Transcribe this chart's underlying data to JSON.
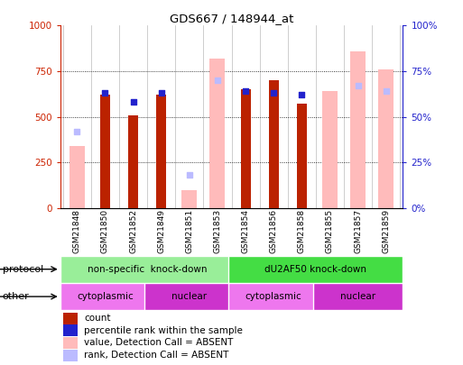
{
  "title": "GDS667 / 148944_at",
  "samples": [
    "GSM21848",
    "GSM21850",
    "GSM21852",
    "GSM21849",
    "GSM21851",
    "GSM21853",
    "GSM21854",
    "GSM21856",
    "GSM21858",
    "GSM21855",
    "GSM21857",
    "GSM21859"
  ],
  "count_values": [
    0,
    620,
    510,
    620,
    0,
    0,
    650,
    700,
    570,
    0,
    0,
    0
  ],
  "rank_values": [
    0,
    63,
    58,
    63,
    0,
    0,
    64,
    63,
    62,
    0,
    0,
    0
  ],
  "absent_count_values": [
    340,
    0,
    0,
    0,
    100,
    820,
    0,
    0,
    0,
    640,
    860,
    760
  ],
  "absent_rank_values": [
    42,
    0,
    0,
    0,
    18,
    70,
    0,
    0,
    0,
    0,
    67,
    64
  ],
  "ylim_left": [
    0,
    1000
  ],
  "ylim_right": [
    0,
    100
  ],
  "yticks_left": [
    0,
    250,
    500,
    750,
    1000
  ],
  "ytick_labels_left": [
    "0",
    "250",
    "500",
    "750",
    "1000"
  ],
  "ytick_labels_right": [
    "0%",
    "25%",
    "50%",
    "75%",
    "100%"
  ],
  "count_color": "#bb2200",
  "rank_color": "#2222cc",
  "absent_count_color": "#ffbbbb",
  "absent_rank_color": "#bbbbff",
  "protocol_groups": [
    {
      "label": "non-specific  knock-down",
      "start": 0,
      "end": 6,
      "color": "#99ee99"
    },
    {
      "label": "dU2AF50 knock-down",
      "start": 6,
      "end": 12,
      "color": "#44dd44"
    }
  ],
  "other_groups": [
    {
      "label": "cytoplasmic",
      "start": 0,
      "end": 3,
      "color": "#ee77ee"
    },
    {
      "label": "nuclear",
      "start": 3,
      "end": 6,
      "color": "#cc33cc"
    },
    {
      "label": "cytoplasmic",
      "start": 6,
      "end": 9,
      "color": "#ee77ee"
    },
    {
      "label": "nuclear",
      "start": 9,
      "end": 12,
      "color": "#cc33cc"
    }
  ],
  "legend_items": [
    {
      "color": "#bb2200",
      "label": "count"
    },
    {
      "color": "#2222cc",
      "label": "percentile rank within the sample"
    },
    {
      "color": "#ffbbbb",
      "label": "value, Detection Call = ABSENT"
    },
    {
      "color": "#bbbbff",
      "label": "rank, Detection Call = ABSENT"
    }
  ],
  "left_axis_color": "#cc2200",
  "right_axis_color": "#2222cc",
  "protocol_label": "protocol",
  "other_label": "other"
}
